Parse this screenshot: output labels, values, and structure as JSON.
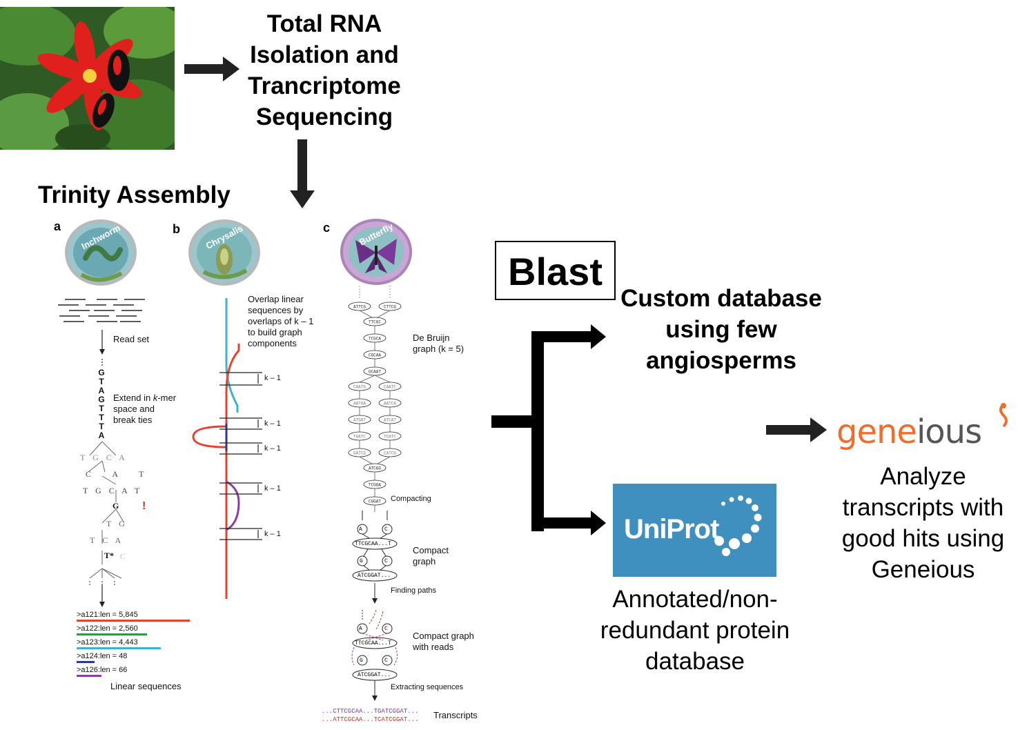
{
  "photo": {
    "description_icon": "passion-flower-butterfly-photo"
  },
  "step1": {
    "title": "Total RNA Isolation and Trancriptome Sequencing"
  },
  "trinity": {
    "title": "Trinity Assembly",
    "panel_a": {
      "letter": "a",
      "badge": "Inchworm",
      "read_set": "Read set",
      "kmer_seq": [
        "G",
        "T",
        "A",
        "G",
        "T",
        "T",
        "T",
        "A"
      ],
      "extend_label_1": "Extend in ",
      "extend_k": "k",
      "extend_label_2": "-mer",
      "extend_label_3": "space and",
      "extend_label_4": "break ties",
      "linear_label": "Linear sequences",
      "contigs": [
        {
          "label": ">a121:len = 5,845",
          "color": "#e8412c"
        },
        {
          "label": ">a122:len = 2,560",
          "color": "#2e9a45"
        },
        {
          "label": ">a123:len = 4,443",
          "color": "#3bb3c9"
        },
        {
          "label": ">a124:len = 48",
          "color": "#2b3a8f"
        },
        {
          "label": ">a126:len = 66",
          "color": "#8e3b9e"
        }
      ]
    },
    "panel_b": {
      "letter": "b",
      "badge": "Chrysalis",
      "overlap_text": [
        "Overlap linear",
        "sequences by",
        "overlaps of k – 1",
        "to build graph",
        "components"
      ],
      "k_label": "k – 1"
    },
    "panel_c": {
      "letter": "c",
      "badge": "Butterfly",
      "de_bruijn": [
        "De Bruijn",
        "graph (k = 5)"
      ],
      "compacting": "Compacting",
      "compact_graph": [
        "Compact",
        "graph"
      ],
      "finding_paths": "Finding paths",
      "compact_reads": [
        "Compact graph",
        "with reads"
      ],
      "extracting": "Extracting sequences",
      "transcripts_label": "Transcripts",
      "transcript_1": "...CTTCGCAA...TGATCGGAT...",
      "transcript_2": "...ATTCGCAA...TCATCGGAT...",
      "left_nodes": [
        "ATTCG",
        "TTCGC",
        "TCGCA",
        "CGCAA",
        "GCAAT",
        "CAATG",
        "AATGA",
        "ATGAT",
        "TGATC",
        "GATCG",
        "ATCGG",
        "TCGGA",
        "CGGAT"
      ],
      "right_nodes": [
        "CTTCG",
        "CAATC",
        "AATCA",
        "ATCAT",
        "TCATC",
        "CATCG"
      ],
      "compact_nodes": [
        "A",
        "C",
        "TTCGCAA...T",
        "G",
        "C",
        "ATCGGAT..."
      ]
    }
  },
  "blast": {
    "label": "Blast"
  },
  "custom_db": {
    "title": "Custom database using few angiosperms"
  },
  "uniprot": {
    "logo": "UniProt",
    "caption": "Annotated/non-redundant protein database"
  },
  "geneious": {
    "logo_a": "gene",
    "logo_b": "ious",
    "caption": "Analyze transcripts with good hits using Geneious"
  },
  "colors": {
    "arrow": "#222222",
    "uniprot_bg": "#3f8fbf",
    "geneious_orange": "#f26c2b"
  }
}
